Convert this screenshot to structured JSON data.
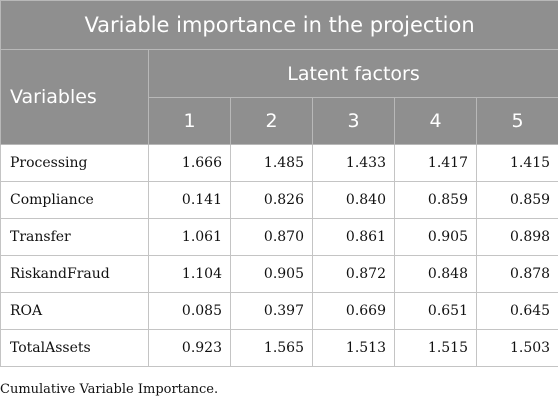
{
  "table": {
    "title": "Variable importance in the projection",
    "variables_header": "Variables",
    "latent_header": "Latent factors",
    "factor_labels": [
      "1",
      "2",
      "3",
      "4",
      "5"
    ],
    "rows": [
      {
        "name": "Processing",
        "values": [
          "1.666",
          "1.485",
          "1.433",
          "1.417",
          "1.415"
        ]
      },
      {
        "name": "Compliance",
        "values": [
          "0.141",
          "0.826",
          "0.840",
          "0.859",
          "0.859"
        ]
      },
      {
        "name": "Transfer",
        "values": [
          "1.061",
          "0.870",
          "0.861",
          "0.905",
          "0.898"
        ]
      },
      {
        "name": "RiskandFraud",
        "values": [
          "1.104",
          "0.905",
          "0.872",
          "0.848",
          "0.878"
        ]
      },
      {
        "name": "ROA",
        "values": [
          "0.085",
          "0.397",
          "0.669",
          "0.651",
          "0.645"
        ]
      },
      {
        "name": "TotalAssets",
        "values": [
          "0.923",
          "1.565",
          "1.513",
          "1.515",
          "1.503"
        ]
      }
    ]
  },
  "caption": "Cumulative Variable Importance.",
  "colors": {
    "header_background": "#8f8f8f",
    "header_text": "#ffffff",
    "border": "#c4c4c4"
  }
}
